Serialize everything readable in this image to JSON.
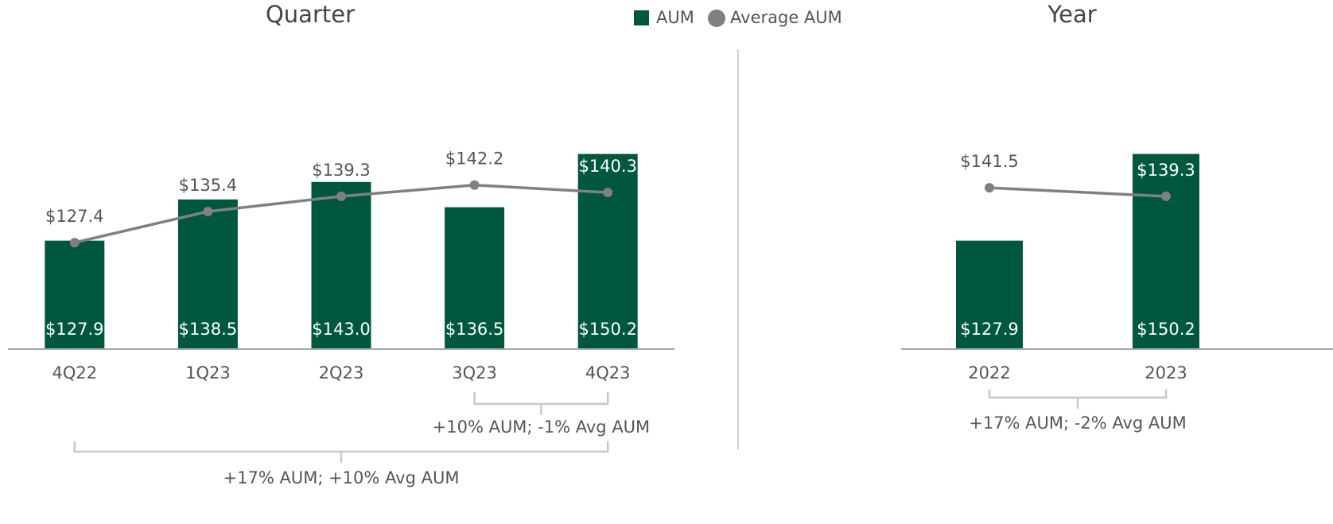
{
  "chart_data": [
    {
      "type": "bar",
      "title": "Quarter",
      "categories": [
        "4Q22",
        "1Q23",
        "2Q23",
        "3Q23",
        "4Q23"
      ],
      "series": [
        {
          "name": "AUM",
          "type": "bar",
          "color": "#00573f",
          "values": [
            127.9,
            138.5,
            143.0,
            136.5,
            150.2
          ],
          "value_labels": [
            "$127.9",
            "$138.5",
            "$143.0",
            "$136.5",
            "$150.2"
          ]
        },
        {
          "name": "Average AUM",
          "type": "line",
          "color": "#808080",
          "values": [
            127.4,
            135.4,
            139.3,
            142.2,
            140.3
          ],
          "value_labels": [
            "$127.4",
            "$135.4",
            "$139.3",
            "$142.2",
            "$140.3"
          ]
        }
      ],
      "ylim": [
        100,
        180
      ],
      "legend": "top",
      "annotations": [
        {
          "text": "+10% AUM; -1% Avg AUM"
        },
        {
          "text": "+17% AUM; +10% Avg AUM"
        }
      ]
    },
    {
      "type": "bar",
      "title": "Year",
      "categories": [
        "2022",
        "2023"
      ],
      "series": [
        {
          "name": "AUM",
          "type": "bar",
          "color": "#00573f",
          "values": [
            127.9,
            150.2
          ],
          "value_labels": [
            "$127.9",
            "$150.2"
          ]
        },
        {
          "name": "Average AUM",
          "type": "line",
          "color": "#808080",
          "values": [
            141.5,
            139.3
          ],
          "value_labels": [
            "$141.5",
            "$139.3"
          ]
        }
      ],
      "ylim": [
        100,
        180
      ],
      "annotations": [
        {
          "text": "+17% AUM; -2% Avg AUM"
        }
      ]
    }
  ]
}
